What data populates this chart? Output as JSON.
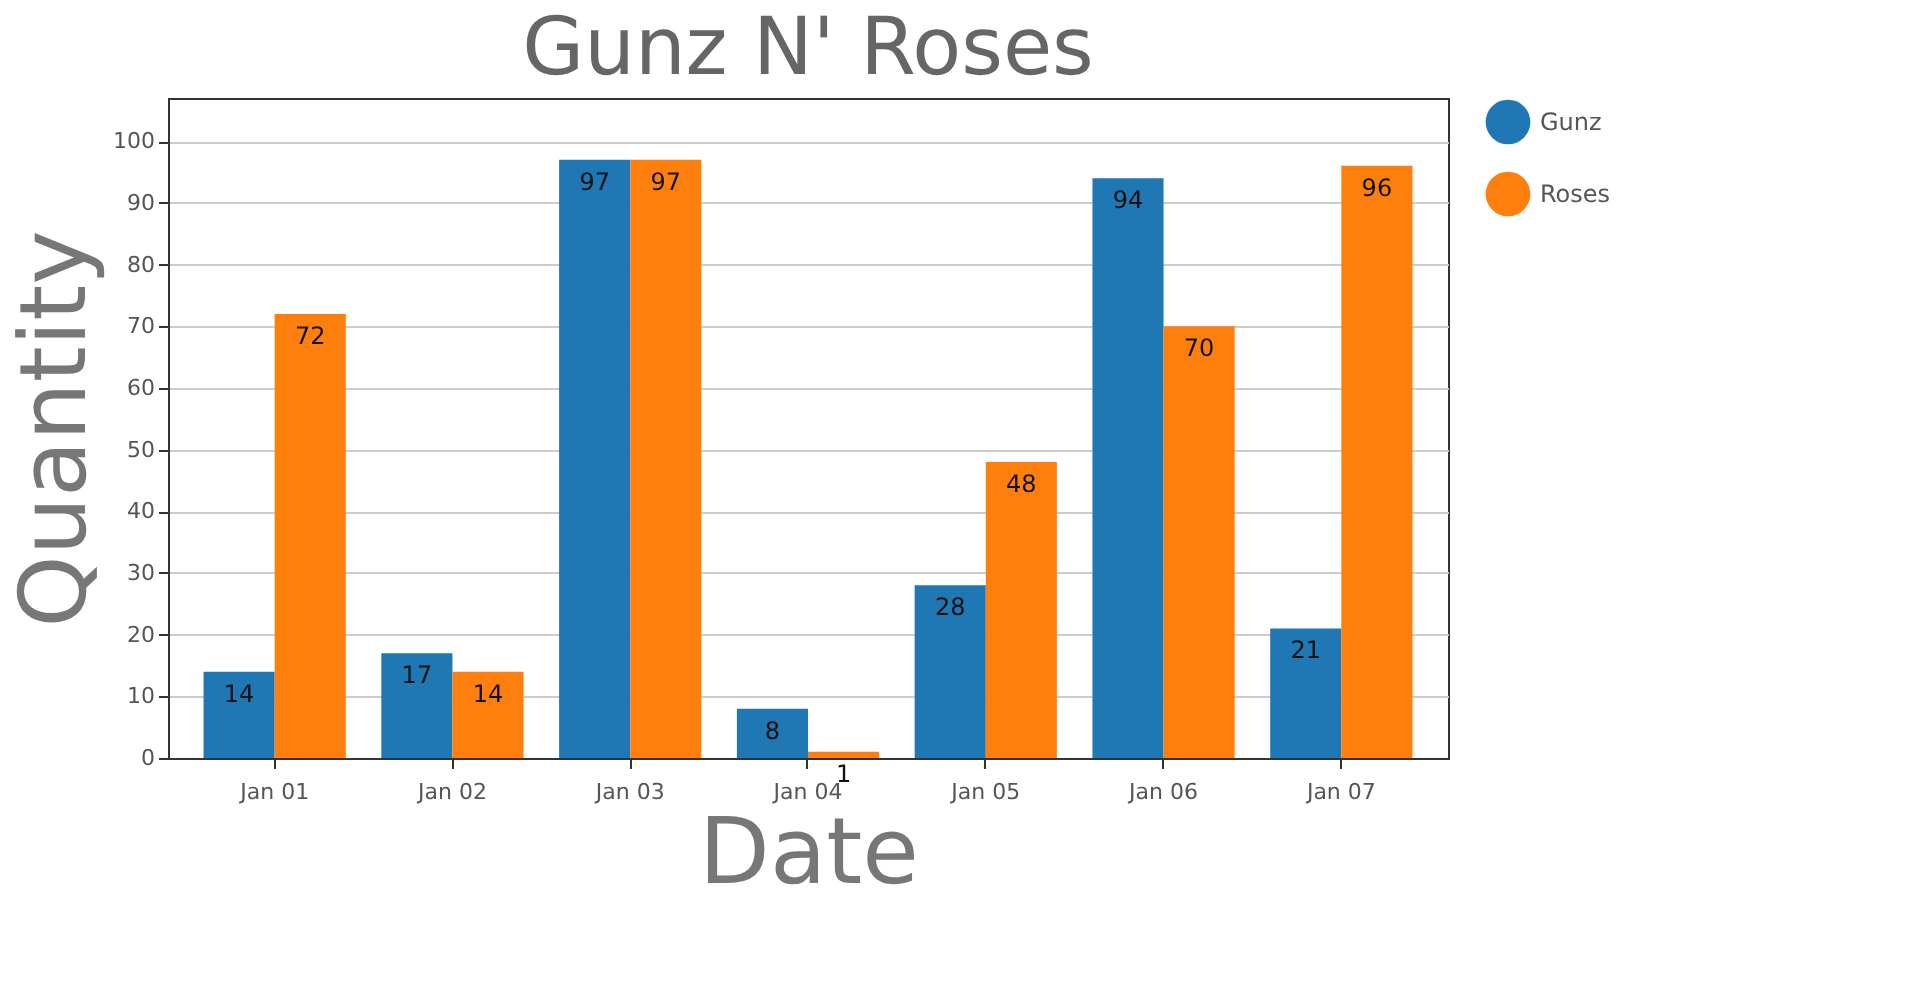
{
  "chart_data": {
    "type": "bar",
    "title": "Gunz N' Roses",
    "xlabel": "Date",
    "ylabel": "Quantity",
    "categories": [
      "Jan 01",
      "Jan 02",
      "Jan 03",
      "Jan 04",
      "Jan 05",
      "Jan 06",
      "Jan 07"
    ],
    "series": [
      {
        "name": "Gunz",
        "color": "#1f77b4",
        "values": [
          14,
          17,
          97,
          8,
          28,
          94,
          21
        ]
      },
      {
        "name": "Roses",
        "color": "#ff7f0e",
        "values": [
          72,
          14,
          97,
          1,
          48,
          70,
          96
        ]
      }
    ],
    "ylim": [
      0,
      107
    ],
    "yticks": [
      0,
      10,
      20,
      30,
      40,
      50,
      60,
      70,
      80,
      90,
      100
    ],
    "grid": "y",
    "legend": "right",
    "data_labels": true
  }
}
